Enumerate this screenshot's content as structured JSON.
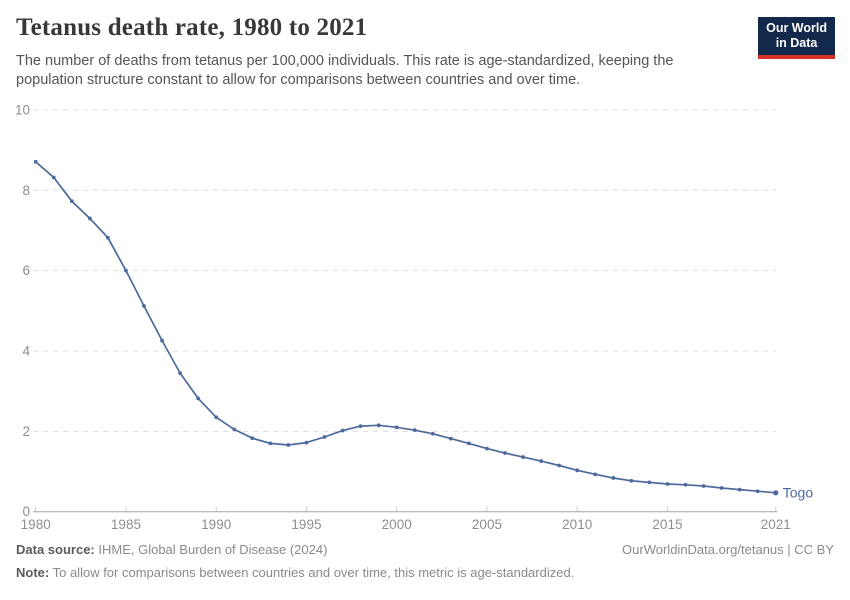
{
  "header": {
    "title": "Tetanus death rate, 1980 to 2021",
    "subtitle": "The number of deaths from tetanus per 100,000 individuals. This rate is age-standardized, keeping the population structure constant to allow for comparisons between countries and over time.",
    "logo_line1": "Our World",
    "logo_line2": "in Data"
  },
  "chart_data": {
    "type": "line",
    "title": "Tetanus death rate, 1980 to 2021",
    "xlabel": "",
    "ylabel": "",
    "xlim": [
      1980,
      2021
    ],
    "ylim": [
      0,
      10
    ],
    "x_ticks": [
      1980,
      1985,
      1990,
      1995,
      2000,
      2005,
      2010,
      2015,
      2021
    ],
    "y_ticks": [
      0,
      2,
      4,
      6,
      8,
      10
    ],
    "grid": "horizontal-dashed",
    "legend_position": "end-of-line-label",
    "x": [
      1980,
      1981,
      1982,
      1983,
      1984,
      1985,
      1986,
      1987,
      1988,
      1989,
      1990,
      1991,
      1992,
      1993,
      1994,
      1995,
      1996,
      1997,
      1998,
      1999,
      2000,
      2001,
      2002,
      2003,
      2004,
      2005,
      2006,
      2007,
      2008,
      2009,
      2010,
      2011,
      2012,
      2013,
      2014,
      2015,
      2016,
      2017,
      2018,
      2019,
      2020,
      2021
    ],
    "series": [
      {
        "name": "Togo",
        "color": "#4C6A9C",
        "values": [
          8.71,
          8.32,
          7.73,
          7.3,
          6.82,
          6.0,
          5.12,
          4.26,
          3.45,
          2.82,
          2.35,
          2.05,
          1.83,
          1.7,
          1.66,
          1.72,
          1.86,
          2.02,
          2.13,
          2.15,
          2.1,
          2.03,
          1.94,
          1.82,
          1.7,
          1.57,
          1.46,
          1.36,
          1.26,
          1.15,
          1.03,
          0.93,
          0.84,
          0.77,
          0.73,
          0.69,
          0.67,
          0.64,
          0.59,
          0.55,
          0.51,
          0.47
        ]
      }
    ]
  },
  "colors": {
    "line": "#4C6A9C",
    "grid": "#DDDDDD",
    "axis": "#A5A5A5",
    "tick": "#C9C9C9",
    "tick_label": "#8E8E8E",
    "logo_bg": "#12294B",
    "logo_stripe": "#D93025"
  },
  "footer": {
    "data_source_label": "Data source:",
    "data_source_value": "IHME, Global Burden of Disease (2024)",
    "link_text": "OurWorldinData.org/tetanus | CC BY",
    "note_label": "Note:",
    "note_value": "To allow for comparisons between countries and over time, this metric is age-standardized."
  }
}
